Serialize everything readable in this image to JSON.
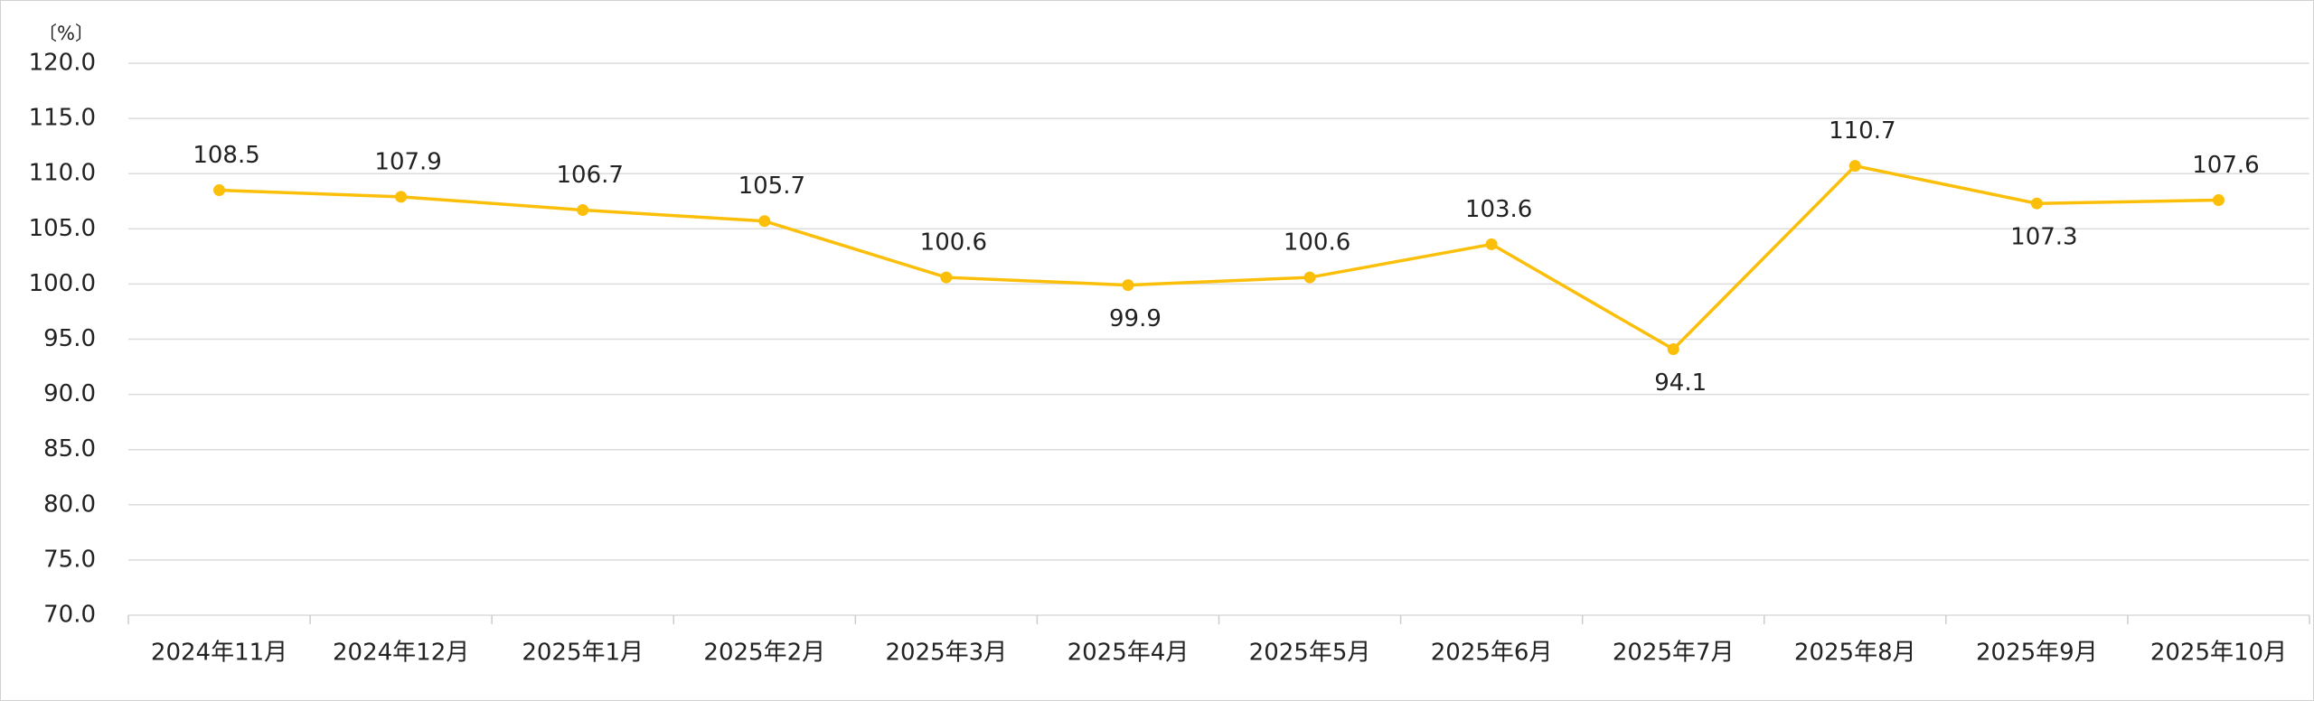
{
  "chart_data": {
    "type": "line",
    "y_unit": "〔%〕",
    "categories": [
      "2024年11月",
      "2024年12月",
      "2025年1月",
      "2025年2月",
      "2025年3月",
      "2025年4月",
      "2025年5月",
      "2025年6月",
      "2025年7月",
      "2025年8月",
      "2025年9月",
      "2025年10月"
    ],
    "series": [
      {
        "color": "#fbbf0a",
        "values": [
          108.5,
          107.9,
          106.7,
          105.7,
          100.6,
          99.9,
          100.6,
          103.6,
          94.1,
          110.7,
          107.3,
          107.6
        ]
      }
    ],
    "ylim": [
      70,
      120
    ],
    "yticks": [
      {
        "value": 70,
        "label": "70.0"
      },
      {
        "value": 75,
        "label": "75.0"
      },
      {
        "value": 80,
        "label": "80.0"
      },
      {
        "value": 85,
        "label": "85.0"
      },
      {
        "value": 90,
        "label": "90.0"
      },
      {
        "value": 95,
        "label": "95.0"
      },
      {
        "value": 100,
        "label": "100.0"
      },
      {
        "value": 105,
        "label": "105.0"
      },
      {
        "value": 110,
        "label": "110.0"
      },
      {
        "value": 115,
        "label": "115.0"
      },
      {
        "value": 120,
        "label": "120.0"
      }
    ],
    "grid": true
  }
}
